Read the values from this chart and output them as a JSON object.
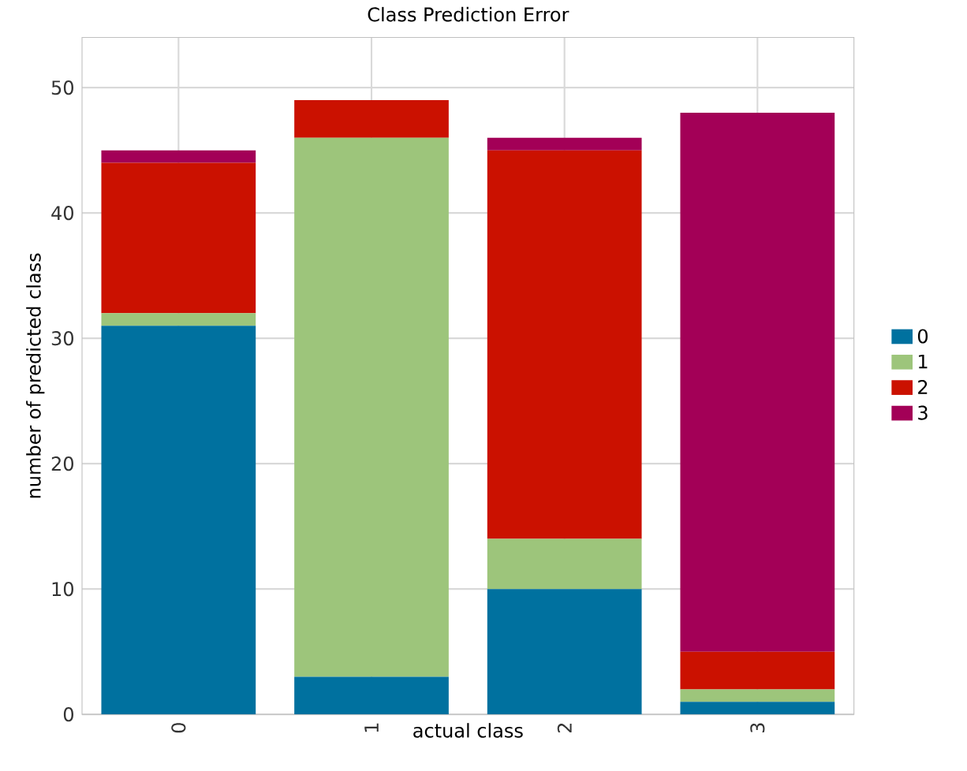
{
  "chart_data": {
    "type": "bar",
    "title": "Class Prediction Error",
    "xlabel": "actual class",
    "ylabel": "number of predicted class",
    "categories": [
      "0",
      "1",
      "2",
      "3"
    ],
    "stacked": true,
    "series": [
      {
        "name": "0",
        "color": "#00719f",
        "values": [
          31,
          3,
          10,
          1
        ]
      },
      {
        "name": "1",
        "color": "#9dc57b",
        "values": [
          1,
          43,
          4,
          1
        ]
      },
      {
        "name": "2",
        "color": "#cb1100",
        "values": [
          12,
          3,
          31,
          3
        ]
      },
      {
        "name": "3",
        "color": "#a30057",
        "values": [
          1,
          0,
          1,
          43
        ]
      }
    ],
    "ylim": [
      0,
      54
    ],
    "yticks": [
      0,
      10,
      20,
      30,
      40,
      50
    ],
    "grid": true,
    "legend": "right"
  }
}
